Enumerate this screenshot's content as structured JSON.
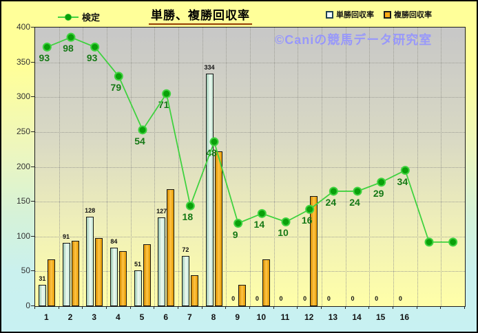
{
  "title": "単勝、複勝回収率",
  "watermark": "©Caniの競馬データ研究室",
  "legend": {
    "line_label": "検定",
    "bar1_label": "単勝回収率",
    "bar2_label": "複勝回収率"
  },
  "colors": {
    "outer_bg_top": "#FFFF99",
    "outer_bg_bottom": "#C8F1F2",
    "plot_bg_top": "#C7C7C7",
    "plot_bg_bottom": "#FFFFA8",
    "line": "#3FD23F",
    "dot": "#0AA00A",
    "kentei_label": "#157815",
    "bar_tansho_fill": "#D9F0E3",
    "bar_fukusho_fill": "#FFAA14",
    "title_underline": "#943A00",
    "watermark": "#9898FA"
  },
  "chart_data": {
    "type": "bar",
    "title": "単勝、複勝回収率",
    "categories": [
      "1",
      "2",
      "3",
      "4",
      "5",
      "6",
      "7",
      "8",
      "9",
      "10",
      "11",
      "12",
      "13",
      "14",
      "15",
      "16",
      "",
      ""
    ],
    "series": [
      {
        "name": "単勝回収率",
        "type": "bar",
        "values": [
          31,
          91,
          128,
          84,
          51,
          127,
          72,
          334,
          0,
          0,
          0,
          0,
          0,
          0,
          0,
          0,
          null,
          null
        ],
        "labels_shown": true
      },
      {
        "name": "複勝回収率",
        "type": "bar",
        "values": [
          67,
          94,
          98,
          79,
          89,
          168,
          44,
          222,
          31,
          67,
          0,
          158,
          0,
          0,
          0,
          0,
          null,
          null
        ],
        "labels_shown": false
      },
      {
        "name": "検定",
        "type": "line",
        "values": [
          93,
          98,
          93,
          79,
          54,
          71,
          18,
          48,
          9,
          14,
          10,
          16,
          24,
          24,
          29,
          34,
          null,
          null
        ],
        "plotted_axis_y": [
          372,
          386,
          372,
          330,
          253,
          305,
          144,
          236,
          119,
          133,
          121,
          139,
          165,
          165,
          178,
          195,
          92,
          92
        ]
      }
    ],
    "xlabel": "",
    "ylabel": "",
    "ylim": [
      0,
      400
    ],
    "ytick_step": 50,
    "yticks": [
      0,
      50,
      100,
      150,
      200,
      250,
      300,
      350,
      400
    ],
    "grid": true,
    "grid_style": "dotted",
    "legend_position": "top"
  }
}
